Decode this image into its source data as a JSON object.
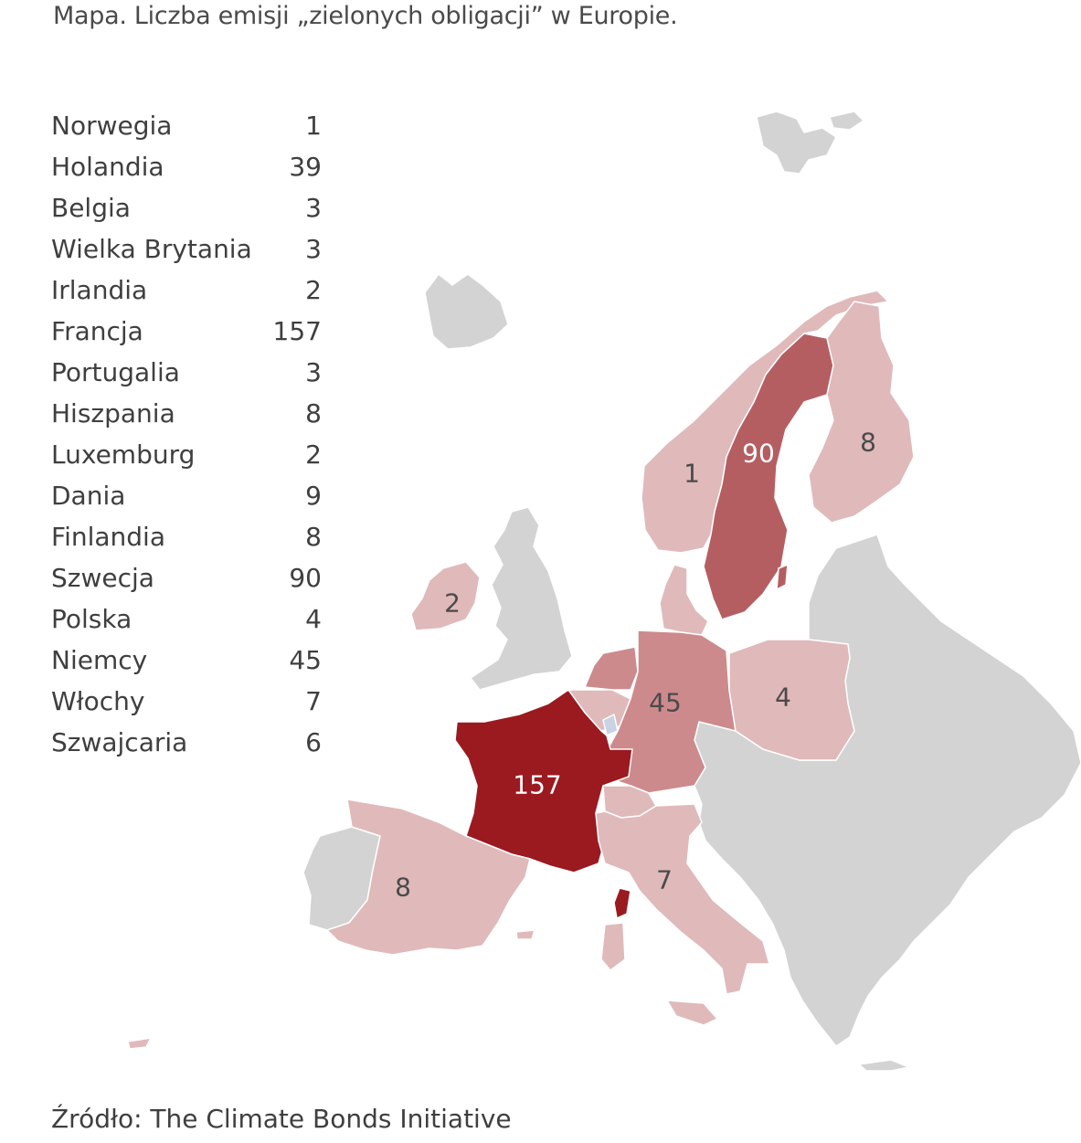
{
  "title": "Mapa. Liczba emisji „zielonych obligacji” w Europie.",
  "source": "Źródło: The Climate Bonds Initiative",
  "legend": [
    {
      "country": "Norwegia",
      "value": "1"
    },
    {
      "country": "Holandia",
      "value": "39"
    },
    {
      "country": "Belgia",
      "value": "3"
    },
    {
      "country": "Wielka Brytania",
      "value": "3"
    },
    {
      "country": "Irlandia",
      "value": "2"
    },
    {
      "country": "Francja",
      "value": "157"
    },
    {
      "country": "Portugalia",
      "value": "3"
    },
    {
      "country": "Hiszpania",
      "value": "8"
    },
    {
      "country": "Luxemburg",
      "value": "2"
    },
    {
      "country": "Dania",
      "value": "9"
    },
    {
      "country": "Finlandia",
      "value": "8"
    },
    {
      "country": "Szwecja",
      "value": "90"
    },
    {
      "country": "Polska",
      "value": "4"
    },
    {
      "country": "Niemcy",
      "value": "45"
    },
    {
      "country": "Włochy",
      "value": "7"
    },
    {
      "country": "Szwajcaria",
      "value": "6"
    }
  ],
  "map_labels": {
    "norway": "1",
    "sweden": "90",
    "finland": "8",
    "ireland": "2",
    "germany": "45",
    "poland": "4",
    "france": "157",
    "spain": "8",
    "italy": "7"
  },
  "colors": {
    "low": "#e0b9ba",
    "mid": "#cd8a8c",
    "high": "#b55e62",
    "top": "#9a1a20",
    "nodata": "#d3d3d3",
    "luxembourg": "#c9d3e3",
    "border": "#ffffff"
  }
}
